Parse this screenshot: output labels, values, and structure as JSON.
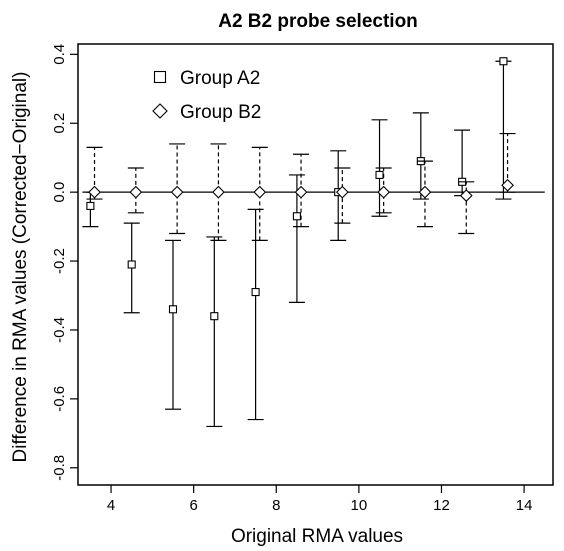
{
  "chart_data": {
    "type": "scatter",
    "title": "A2 B2 probe selection",
    "xlabel": "Original RMA values",
    "ylabel": "Difference in RMA values (Corrected−Original)",
    "xlim": [
      3.2,
      14.7
    ],
    "ylim": [
      -0.85,
      0.43
    ],
    "x_ticks": [
      4,
      6,
      8,
      10,
      12,
      14
    ],
    "y_ticks": [
      -0.8,
      -0.6,
      -0.4,
      -0.2,
      0.0,
      0.2,
      0.4
    ],
    "reference_line_y": 0,
    "grid": false,
    "legend_position": "top-left",
    "series": [
      {
        "name": "Group A2",
        "marker": "square",
        "line_style": "solid",
        "points": [
          {
            "x": 3.5,
            "y": -0.04,
            "lo": -0.1,
            "hi": 0.0
          },
          {
            "x": 4.5,
            "y": -0.21,
            "lo": -0.35,
            "hi": -0.09
          },
          {
            "x": 5.5,
            "y": -0.34,
            "lo": -0.63,
            "hi": -0.14
          },
          {
            "x": 6.5,
            "y": -0.36,
            "lo": -0.68,
            "hi": -0.13
          },
          {
            "x": 7.5,
            "y": -0.29,
            "lo": -0.66,
            "hi": -0.05
          },
          {
            "x": 8.5,
            "y": -0.07,
            "lo": -0.32,
            "hi": 0.05
          },
          {
            "x": 9.5,
            "y": 0.0,
            "lo": -0.14,
            "hi": 0.12
          },
          {
            "x": 10.5,
            "y": 0.05,
            "lo": -0.07,
            "hi": 0.21
          },
          {
            "x": 11.5,
            "y": 0.09,
            "lo": -0.02,
            "hi": 0.23
          },
          {
            "x": 12.5,
            "y": 0.03,
            "lo": -0.01,
            "hi": 0.18
          },
          {
            "x": 13.5,
            "y": 0.38,
            "lo": -0.02,
            "hi": 0.38
          }
        ]
      },
      {
        "name": "Group B2",
        "marker": "diamond",
        "line_style": "dashed",
        "points": [
          {
            "x": 3.6,
            "y": 0.0,
            "lo": -0.02,
            "hi": 0.13
          },
          {
            "x": 4.6,
            "y": 0.0,
            "lo": -0.06,
            "hi": 0.07
          },
          {
            "x": 5.6,
            "y": 0.0,
            "lo": -0.12,
            "hi": 0.14
          },
          {
            "x": 6.6,
            "y": 0.0,
            "lo": -0.14,
            "hi": 0.14
          },
          {
            "x": 7.6,
            "y": 0.0,
            "lo": -0.14,
            "hi": 0.13
          },
          {
            "x": 8.6,
            "y": 0.0,
            "lo": -0.1,
            "hi": 0.11
          },
          {
            "x": 9.6,
            "y": 0.0,
            "lo": -0.09,
            "hi": 0.07
          },
          {
            "x": 10.6,
            "y": 0.0,
            "lo": -0.06,
            "hi": 0.07
          },
          {
            "x": 11.6,
            "y": 0.0,
            "lo": -0.1,
            "hi": 0.09
          },
          {
            "x": 12.6,
            "y": -0.01,
            "lo": -0.12,
            "hi": 0.03
          },
          {
            "x": 13.6,
            "y": 0.02,
            "lo": 0.0,
            "hi": 0.17
          }
        ]
      }
    ]
  }
}
